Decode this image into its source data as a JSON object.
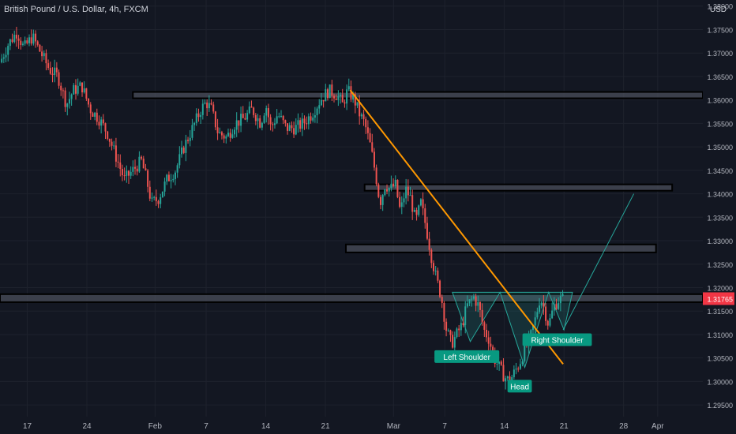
{
  "header": {
    "title": "British Pound / U.S. Dollar, 4h, FXCM",
    "currency": "USD"
  },
  "price_badge": "1.31765",
  "chart_data": {
    "type": "candlestick",
    "symbol": "British Pound / U.S. Dollar",
    "interval": "4h",
    "source": "FXCM",
    "currency": "USD",
    "last_price": 1.31765,
    "y_ticks": [
      1.295,
      1.3,
      1.305,
      1.31,
      1.315,
      1.32,
      1.325,
      1.33,
      1.335,
      1.34,
      1.345,
      1.35,
      1.355,
      1.36,
      1.365,
      1.37,
      1.375,
      1.38
    ],
    "y_tick_labels": [
      "1.29500",
      "1.30000",
      "1.30500",
      "1.31000",
      "1.31500",
      "1.32000",
      "1.32500",
      "1.33000",
      "1.33500",
      "1.34000",
      "1.34500",
      "1.35000",
      "1.35500",
      "1.36000",
      "1.36500",
      "1.37000",
      "1.37500",
      "1.38000"
    ],
    "ylim": [
      1.2925,
      1.3813
    ],
    "x_ticks": [
      {
        "label": "17",
        "day": 0
      },
      {
        "label": "24",
        "day": 7
      },
      {
        "label": "Feb",
        "day": 15
      },
      {
        "label": "7",
        "day": 21
      },
      {
        "label": "14",
        "day": 28
      },
      {
        "label": "21",
        "day": 35
      },
      {
        "label": "Mar",
        "day": 43
      },
      {
        "label": "7",
        "day": 49
      },
      {
        "label": "14",
        "day": 56
      },
      {
        "label": "21",
        "day": 63
      },
      {
        "label": "28",
        "day": 70
      },
      {
        "label": "Apr",
        "day": 74
      }
    ],
    "xlim_days": [
      -3.2,
      79.3
    ],
    "price_path": [
      [
        -3.2,
        1.368
      ],
      [
        -2.2,
        1.372
      ],
      [
        -1.2,
        1.3745
      ],
      [
        -0.4,
        1.371
      ],
      [
        0.6,
        1.3735
      ],
      [
        1.6,
        1.37
      ],
      [
        2.6,
        1.3665
      ],
      [
        3.6,
        1.365
      ],
      [
        4.6,
        1.359
      ],
      [
        5.4,
        1.362
      ],
      [
        6.4,
        1.363
      ],
      [
        7.4,
        1.358
      ],
      [
        8.4,
        1.356
      ],
      [
        9.4,
        1.353
      ],
      [
        10.4,
        1.348
      ],
      [
        11.4,
        1.343
      ],
      [
        12.4,
        1.345
      ],
      [
        13.4,
        1.347
      ],
      [
        14.0,
        1.343
      ],
      [
        14.6,
        1.338
      ],
      [
        15.4,
        1.339
      ],
      [
        16.4,
        1.343
      ],
      [
        17.4,
        1.345
      ],
      [
        18.4,
        1.35
      ],
      [
        19.4,
        1.354
      ],
      [
        20.4,
        1.358
      ],
      [
        21.0,
        1.3595
      ],
      [
        21.6,
        1.358
      ],
      [
        22.4,
        1.353
      ],
      [
        23.4,
        1.352
      ],
      [
        24.4,
        1.355
      ],
      [
        25.4,
        1.356
      ],
      [
        26.4,
        1.358
      ],
      [
        27.4,
        1.355
      ],
      [
        28.0,
        1.359
      ],
      [
        28.6,
        1.354
      ],
      [
        29.4,
        1.357
      ],
      [
        30.4,
        1.354
      ],
      [
        31.4,
        1.354
      ],
      [
        32.4,
        1.355
      ],
      [
        33.4,
        1.357
      ],
      [
        34.4,
        1.36
      ],
      [
        35.4,
        1.362
      ],
      [
        36.4,
        1.361
      ],
      [
        37.0,
        1.359
      ],
      [
        37.6,
        1.362
      ],
      [
        38.4,
        1.36
      ],
      [
        39.0,
        1.357
      ],
      [
        39.6,
        1.355
      ],
      [
        40.3,
        1.35
      ],
      [
        40.9,
        1.344
      ],
      [
        41.4,
        1.338
      ],
      [
        42.0,
        1.342
      ],
      [
        42.6,
        1.341
      ],
      [
        43.2,
        1.342
      ],
      [
        43.8,
        1.336
      ],
      [
        44.4,
        1.341
      ],
      [
        45.0,
        1.339
      ],
      [
        45.6,
        1.334
      ],
      [
        46.2,
        1.338
      ],
      [
        46.8,
        1.333
      ],
      [
        47.4,
        1.327
      ],
      [
        48.0,
        1.322
      ],
      [
        48.6,
        1.318
      ],
      [
        49.2,
        1.311
      ],
      [
        49.8,
        1.308
      ],
      [
        50.4,
        1.31
      ],
      [
        51.0,
        1.312
      ],
      [
        51.6,
        1.316
      ],
      [
        52.4,
        1.318
      ],
      [
        53.0,
        1.316
      ],
      [
        53.6,
        1.311
      ],
      [
        54.2,
        1.309
      ],
      [
        54.8,
        1.305
      ],
      [
        55.4,
        1.303
      ],
      [
        56.0,
        1.301
      ],
      [
        56.6,
        1.3
      ],
      [
        57.2,
        1.302
      ],
      [
        57.8,
        1.304
      ],
      [
        58.4,
        1.307
      ],
      [
        59.0,
        1.309
      ],
      [
        59.6,
        1.313
      ],
      [
        60.2,
        1.318
      ],
      [
        60.6,
        1.316
      ],
      [
        61.2,
        1.312
      ],
      [
        61.8,
        1.316
      ],
      [
        62.4,
        1.3175
      ],
      [
        62.9,
        1.31765
      ]
    ],
    "annotations": {
      "resistance_zones": [
        {
          "from_day": 12.4,
          "to_day": 79.3,
          "low": 1.3605,
          "high": 1.3617
        },
        {
          "from_day": 39.6,
          "to_day": 75.7,
          "low": 1.3407,
          "high": 1.342
        },
        {
          "from_day": 37.4,
          "to_day": 73.8,
          "low": 1.3275,
          "high": 1.3292
        },
        {
          "from_day": -3.2,
          "to_day": 79.3,
          "low": 1.3169,
          "high": 1.3186
        }
      ],
      "trendline": {
        "from": [
          37.9,
          1.3621
        ],
        "to": [
          62.9,
          1.3037
        ],
        "color": "#ff9800"
      },
      "pattern_outline": [
        [
          49.9,
          1.319
        ],
        [
          52.0,
          1.3085
        ],
        [
          55.5,
          1.319
        ],
        [
          58.4,
          1.303
        ],
        [
          61.2,
          1.319
        ],
        [
          63.0,
          1.311
        ],
        [
          64.0,
          1.319
        ]
      ],
      "projection": [
        [
          62.9,
          1.311
        ],
        [
          71.2,
          1.34
        ]
      ],
      "labels": [
        {
          "text": "Left Shoulder",
          "day": 51.6,
          "price": 1.3053
        },
        {
          "text": "Head",
          "day": 57.8,
          "price": 1.299
        },
        {
          "text": "Right Shoulder",
          "day": 62.2,
          "price": 1.3089
        }
      ]
    }
  }
}
